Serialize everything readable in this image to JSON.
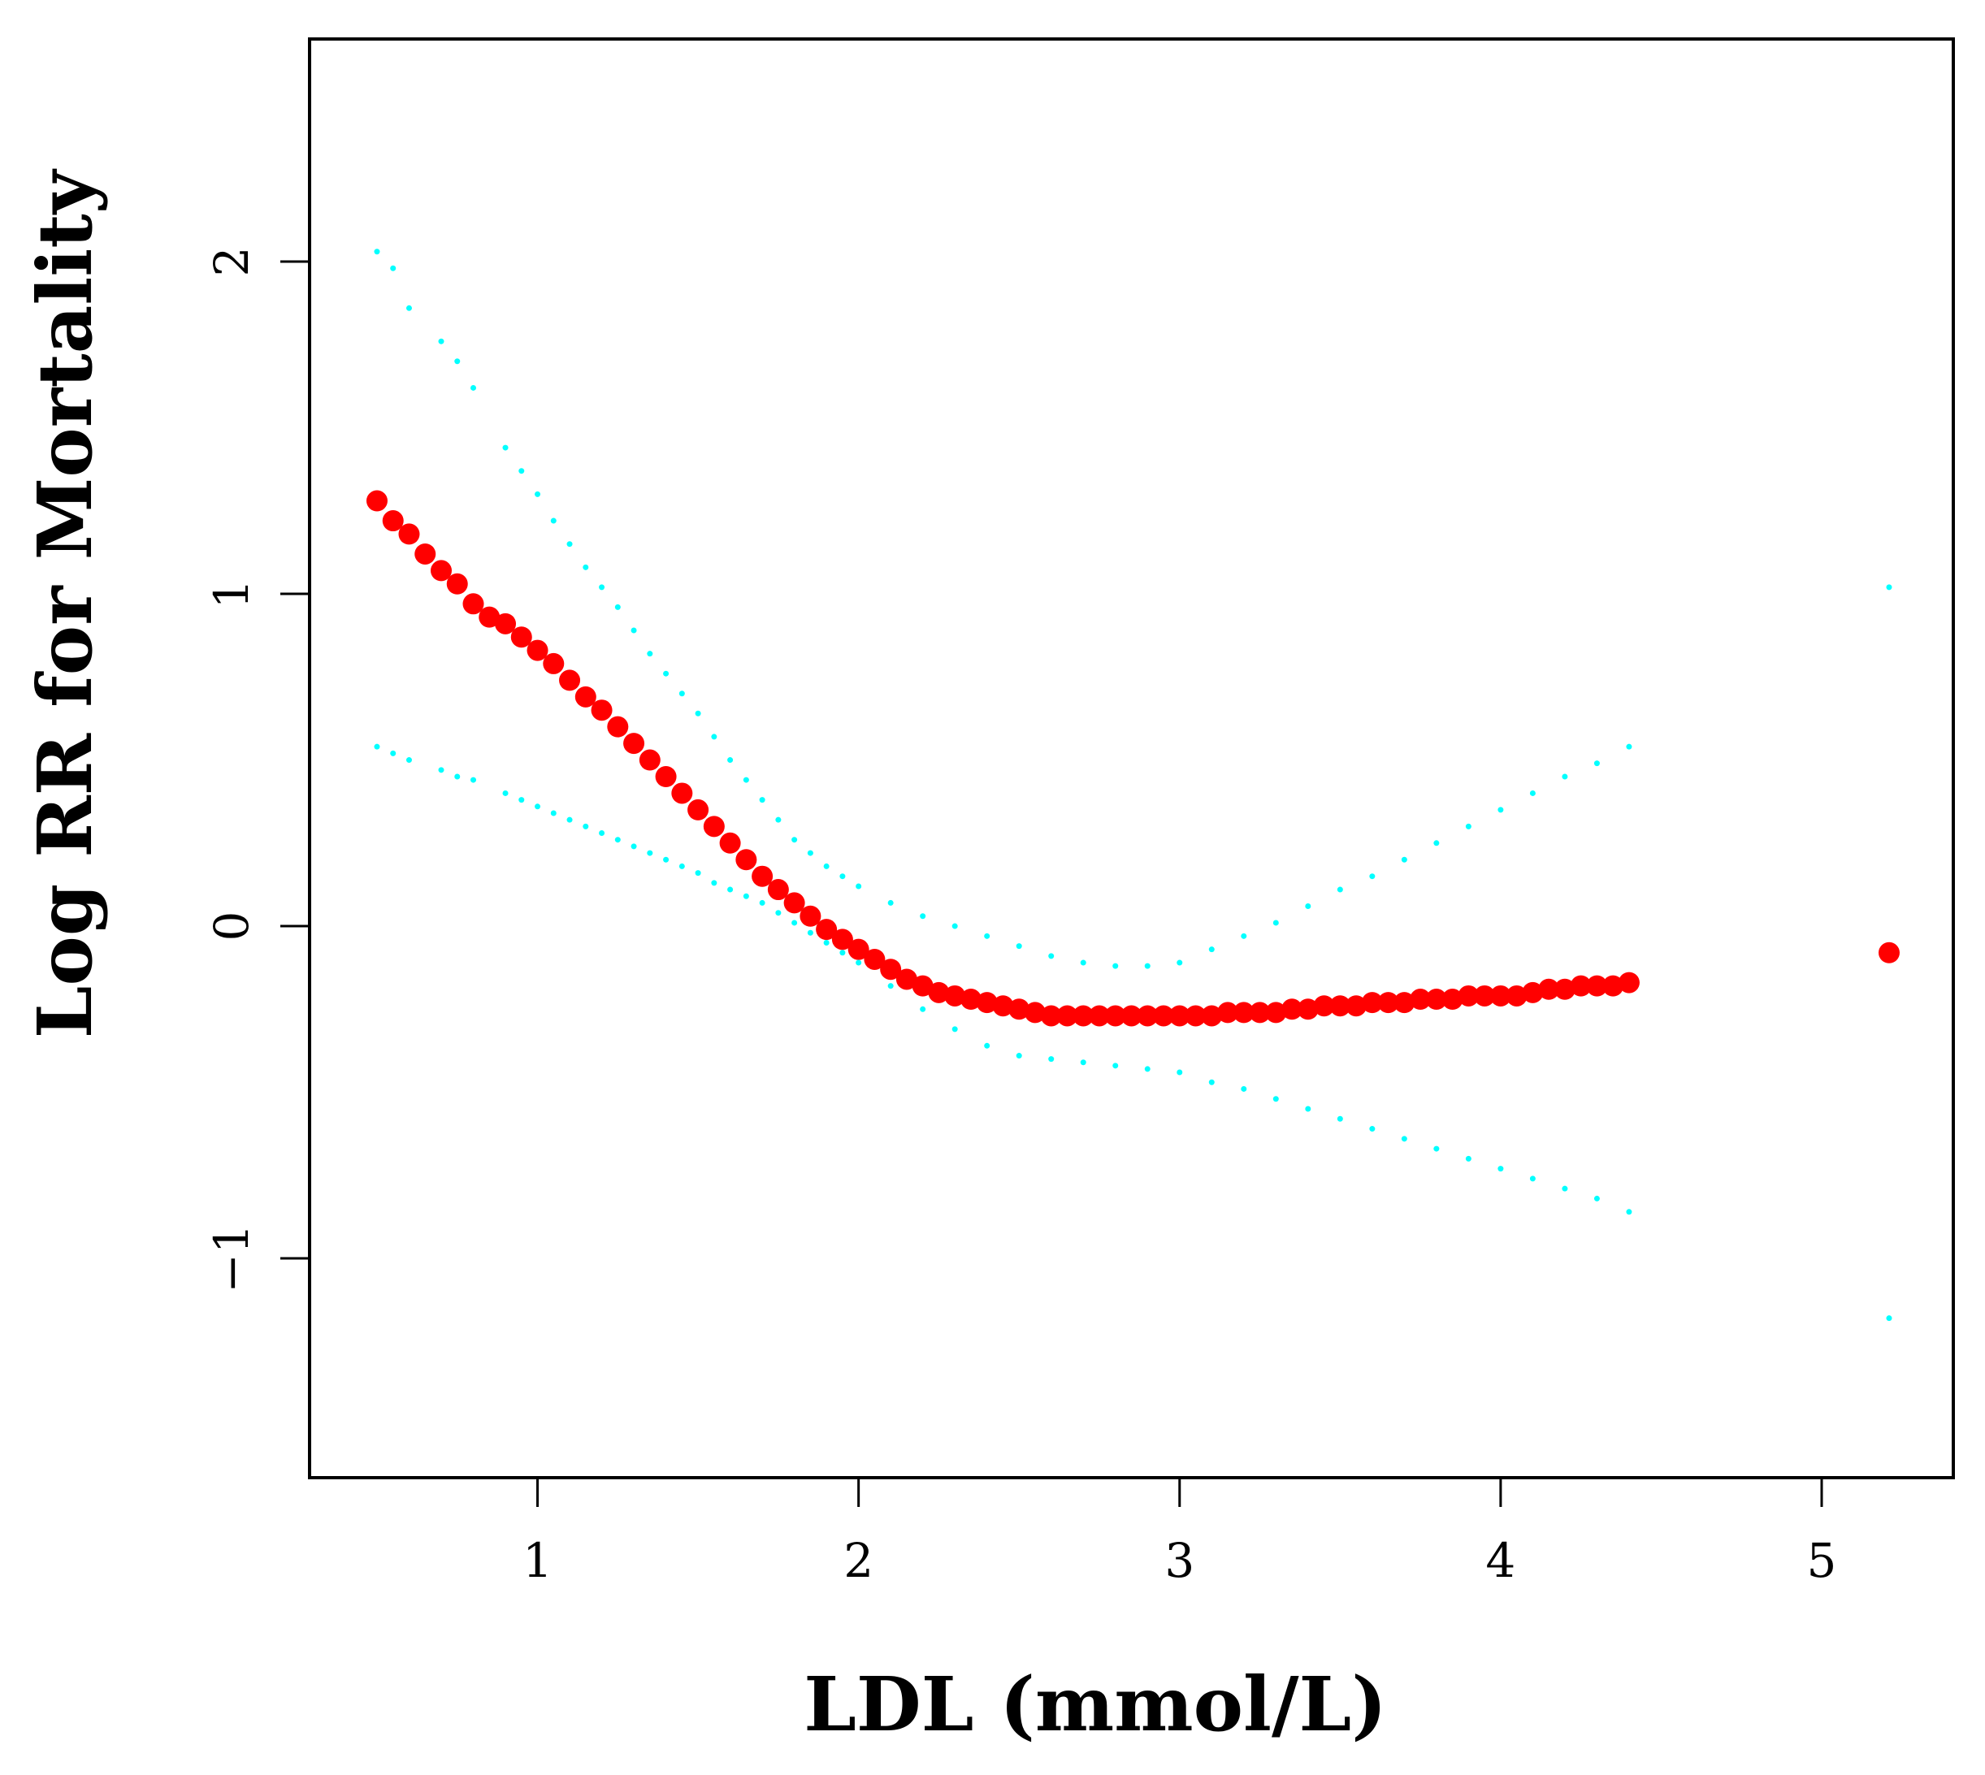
{
  "chart_data": {
    "type": "scatter",
    "title": "",
    "xlabel": "LDL (mmol/L)",
    "ylabel": "Log RR for Mortality",
    "xlim": [
      0.29,
      5.41
    ],
    "ylim": [
      -1.66,
      2.67
    ],
    "x_ticks": [
      1,
      2,
      3,
      4,
      5
    ],
    "x_tick_labels": [
      "1",
      "2",
      "3",
      "4",
      "5"
    ],
    "y_ticks": [
      -1,
      0,
      1,
      2
    ],
    "y_tick_labels": [
      "−1",
      "0",
      "1",
      "2"
    ],
    "grid": false,
    "legend": "none",
    "colors": {
      "estimate": "#ff0000",
      "ci": "#00ffff",
      "axis": "#000000"
    },
    "series": [
      {
        "name": "Log RR",
        "style": "large-points",
        "x": [
          0.5,
          0.55,
          0.6,
          0.65,
          0.7,
          0.75,
          0.8,
          0.85,
          0.9,
          0.95,
          1.0,
          1.05,
          1.1,
          1.15,
          1.2,
          1.25,
          1.3,
          1.35,
          1.4,
          1.45,
          1.5,
          1.55,
          1.6,
          1.65,
          1.7,
          1.75,
          1.8,
          1.85,
          1.9,
          1.95,
          2.0,
          2.05,
          2.1,
          2.15,
          2.2,
          2.25,
          2.3,
          2.35,
          2.4,
          2.45,
          2.5,
          2.55,
          2.6,
          2.65,
          2.7,
          2.75,
          2.8,
          2.85,
          2.9,
          2.95,
          3.0,
          3.05,
          3.1,
          3.15,
          3.2,
          3.25,
          3.3,
          3.35,
          3.4,
          3.45,
          3.5,
          3.55,
          3.6,
          3.65,
          3.7,
          3.75,
          3.8,
          3.85,
          3.9,
          3.95,
          4.0,
          4.05,
          4.1,
          4.15,
          4.2,
          4.25,
          4.3,
          4.35,
          4.4,
          5.21
        ],
        "y": [
          1.28,
          1.22,
          1.18,
          1.12,
          1.07,
          1.03,
          0.97,
          0.93,
          0.91,
          0.87,
          0.83,
          0.79,
          0.74,
          0.69,
          0.65,
          0.6,
          0.55,
          0.5,
          0.45,
          0.4,
          0.35,
          0.3,
          0.25,
          0.2,
          0.15,
          0.11,
          0.07,
          0.03,
          -0.01,
          -0.04,
          -0.07,
          -0.1,
          -0.13,
          -0.16,
          -0.18,
          -0.2,
          -0.21,
          -0.22,
          -0.23,
          -0.24,
          -0.25,
          -0.26,
          -0.27,
          -0.27,
          -0.27,
          -0.27,
          -0.27,
          -0.27,
          -0.27,
          -0.27,
          -0.27,
          -0.27,
          -0.27,
          -0.26,
          -0.26,
          -0.26,
          -0.26,
          -0.25,
          -0.25,
          -0.24,
          -0.24,
          -0.24,
          -0.23,
          -0.23,
          -0.23,
          -0.22,
          -0.22,
          -0.22,
          -0.21,
          -0.21,
          -0.21,
          -0.21,
          -0.2,
          -0.19,
          -0.19,
          -0.18,
          -0.18,
          -0.18,
          -0.17,
          -0.08
        ]
      },
      {
        "name": "Upper 95% CI",
        "style": "small-points",
        "x": [
          0.5,
          0.55,
          0.6,
          0.7,
          0.75,
          0.8,
          0.9,
          0.95,
          1.0,
          1.05,
          1.1,
          1.15,
          1.2,
          1.25,
          1.3,
          1.35,
          1.4,
          1.45,
          1.5,
          1.55,
          1.6,
          1.65,
          1.7,
          1.75,
          1.8,
          1.85,
          1.9,
          1.95,
          2.0,
          2.1,
          2.2,
          2.3,
          2.4,
          2.5,
          2.6,
          2.7,
          2.8,
          2.9,
          3.0,
          3.1,
          3.2,
          3.3,
          3.4,
          3.5,
          3.6,
          3.7,
          3.8,
          3.9,
          4.0,
          4.1,
          4.2,
          4.3,
          4.4,
          5.21
        ],
        "y": [
          2.03,
          1.98,
          1.86,
          1.76,
          1.7,
          1.62,
          1.44,
          1.37,
          1.3,
          1.22,
          1.15,
          1.08,
          1.02,
          0.96,
          0.89,
          0.82,
          0.76,
          0.7,
          0.64,
          0.57,
          0.5,
          0.44,
          0.38,
          0.32,
          0.26,
          0.22,
          0.18,
          0.15,
          0.12,
          0.07,
          0.03,
          0.0,
          -0.03,
          -0.06,
          -0.09,
          -0.11,
          -0.12,
          -0.12,
          -0.11,
          -0.07,
          -0.03,
          0.01,
          0.06,
          0.11,
          0.15,
          0.2,
          0.25,
          0.3,
          0.35,
          0.4,
          0.45,
          0.49,
          0.54,
          1.02
        ]
      },
      {
        "name": "Lower 95% CI",
        "style": "small-points",
        "x": [
          0.5,
          0.55,
          0.6,
          0.7,
          0.75,
          0.8,
          0.9,
          0.95,
          1.0,
          1.05,
          1.1,
          1.15,
          1.2,
          1.25,
          1.3,
          1.35,
          1.4,
          1.45,
          1.5,
          1.55,
          1.6,
          1.65,
          1.7,
          1.75,
          1.8,
          1.85,
          1.9,
          1.95,
          2.0,
          2.1,
          2.2,
          2.3,
          2.4,
          2.5,
          2.6,
          2.7,
          2.8,
          2.9,
          3.0,
          3.1,
          3.2,
          3.3,
          3.4,
          3.5,
          3.6,
          3.7,
          3.8,
          3.9,
          4.0,
          4.1,
          4.2,
          4.3,
          4.4,
          5.21
        ],
        "y": [
          0.54,
          0.52,
          0.5,
          0.47,
          0.45,
          0.44,
          0.4,
          0.38,
          0.36,
          0.34,
          0.32,
          0.3,
          0.28,
          0.26,
          0.24,
          0.22,
          0.2,
          0.18,
          0.16,
          0.13,
          0.11,
          0.09,
          0.07,
          0.04,
          0.01,
          -0.02,
          -0.05,
          -0.08,
          -0.11,
          -0.18,
          -0.25,
          -0.31,
          -0.36,
          -0.39,
          -0.4,
          -0.41,
          -0.42,
          -0.43,
          -0.44,
          -0.47,
          -0.49,
          -0.52,
          -0.55,
          -0.58,
          -0.61,
          -0.64,
          -0.67,
          -0.7,
          -0.73,
          -0.76,
          -0.79,
          -0.82,
          -0.86,
          -1.18
        ]
      }
    ]
  }
}
